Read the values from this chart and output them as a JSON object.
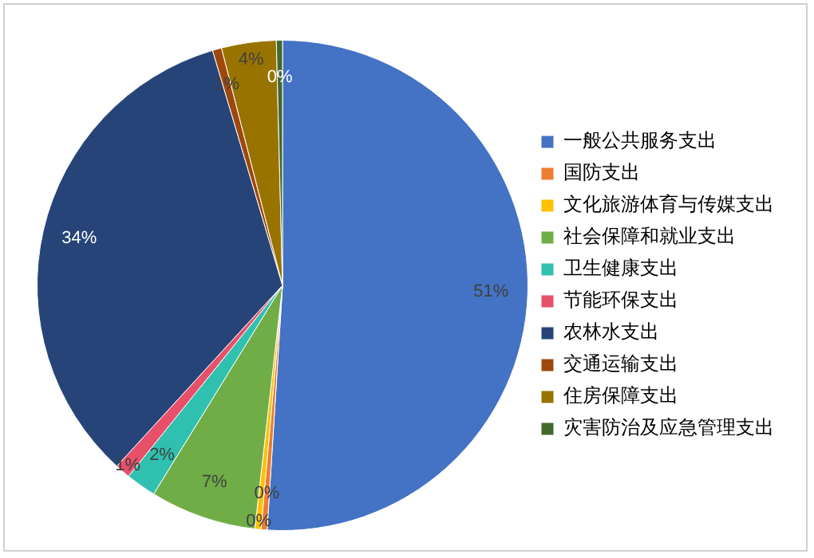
{
  "chart_data": {
    "type": "pie",
    "categories": [
      "一般公共服务支出",
      "国防支出",
      "文化旅游体育与传媒支出",
      "社会保障和就业支出",
      "卫生健康支出",
      "节能环保支出",
      "农林水支出",
      "交通运输支出",
      "住房保障支出",
      "灾害防治及应急管理支出"
    ],
    "values": [
      51,
      0.4,
      0.4,
      7,
      2,
      1,
      33.6,
      0.6,
      3.6,
      0.4
    ],
    "value_labels": [
      "51%",
      "0%",
      "0%",
      "7%",
      "2%",
      "1%",
      "34%",
      "1%",
      "4%",
      "0%"
    ],
    "colors": [
      "#4472c4",
      "#ed7d31",
      "#ffc000",
      "#70ad47",
      "#2fc0b0",
      "#e8506a",
      "#264478",
      "#9e480e",
      "#997300",
      "#43682b"
    ],
    "legend": "right"
  }
}
